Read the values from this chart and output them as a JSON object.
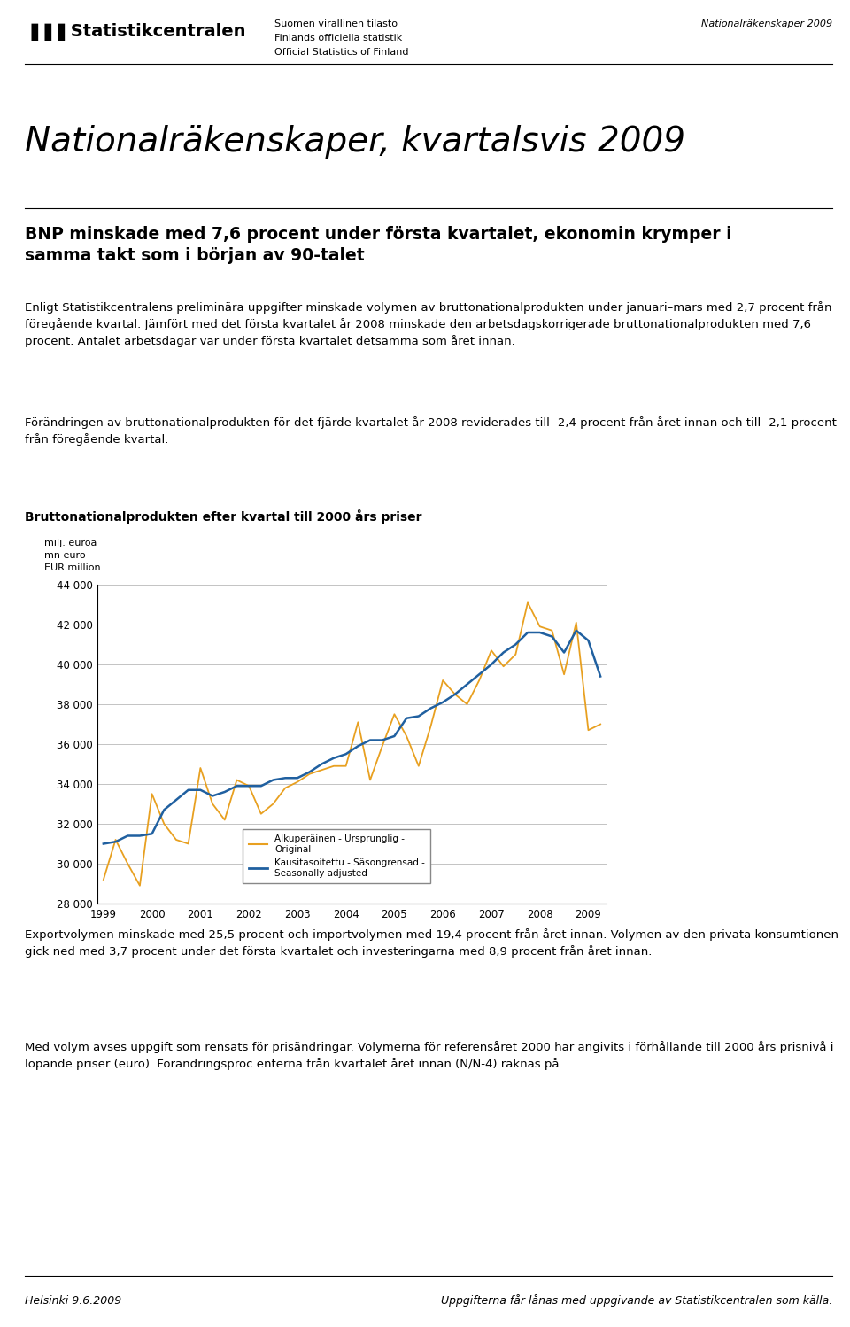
{
  "title_main": "Nationalräkenskaper, kvartalsvis 2009",
  "header_left1": "Suomen virallinen tilasto",
  "header_left2": "Finlands officiella statistik",
  "header_left3": "Official Statistics of Finland",
  "header_right": "Nationalräkenskaper 2009",
  "logo_text": "Statistikcentralen",
  "subtitle": "BNP minskade med 7,6 procent under första kvartalet, ekonomin krymper i\nsamma takt som i början av 90-talet",
  "para1": "Enligt Statistikcentralens preliminära uppgifter minskade volymen av bruttonationalprodukten under januari–mars med 2,7 procent från föregående kvartal. Jämfört med det första kvartalet år 2008 minskade den arbetsdagskorrigerade bruttonationalprodukten med 7,6 procent. Antalet arbetsdagar var under första kvartalet detsamma som året innan.",
  "para2": "Förändringen av bruttonationalprodukten för det fjärde kvartalet år 2008 reviderades till -2,4 procent från året innan och till -2,1 procent från föregående kvartal.",
  "chart_title": "Bruttonationalprodukten efter kvartal till 2000 års priser",
  "chart_ylabel1": "milj. euroa",
  "chart_ylabel2": "mn euro",
  "chart_ylabel3": "EUR million",
  "para3": "Exportvolymen minskade med 25,5 procent och importvolymen med 19,4 procent från året innan. Volymen av den privata konsumtionen gick ned med 3,7 procent under det första kvartalet och investeringarna med 8,9 procent från året innan.",
  "para4": "Med volym avses uppgift som rensats för prisändringar. Volymerna för referensåret 2000 har angivits i förhållande till 2000 års prisnivå i löpande priser (euro). Förändringsproc enterna från kvartalet året innan (N/N-4) räknas på",
  "footer_left": "Helsinki 9.6.2009",
  "footer_right": "Uppgifterna får lånas med uppgivande av Statistikcentralen som källa.",
  "legend_line1": "Alkuperäinen - Ursprunglig -\nOriginal",
  "legend_line2": "Kausitasoitettu - Säsongrensad -\nSeasonally adjusted",
  "ylim": [
    28000,
    44000
  ],
  "yticks": [
    28000,
    30000,
    32000,
    34000,
    36000,
    38000,
    40000,
    42000,
    44000
  ],
  "ytick_labels": [
    "28 000",
    "30 000",
    "32 000",
    "34 000",
    "36 000",
    "38 000",
    "40 000",
    "42 000",
    "44 000"
  ],
  "xtick_labels": [
    "1999",
    "2000",
    "2001",
    "2002",
    "2003",
    "2004",
    "2005",
    "2006",
    "2007",
    "2008",
    "2009"
  ],
  "color_original": "#E8A020",
  "color_seasonal": "#2060A0",
  "original_data": [
    29200,
    31200,
    30000,
    28900,
    33500,
    32000,
    31200,
    31000,
    34800,
    33000,
    32200,
    34200,
    33900,
    32500,
    33000,
    33800,
    34100,
    34500,
    34700,
    34900,
    34900,
    37100,
    34200,
    35900,
    37500,
    36400,
    34900,
    36900,
    39200,
    38500,
    38000,
    39200,
    40700,
    39900,
    40500,
    43100,
    41900,
    41700,
    39500,
    42100,
    36700,
    37000
  ],
  "seasonal_data": [
    31000,
    31100,
    31400,
    31400,
    31500,
    32700,
    33200,
    33700,
    33700,
    33400,
    33600,
    33900,
    33900,
    33900,
    34200,
    34300,
    34300,
    34600,
    35000,
    35300,
    35500,
    35900,
    36200,
    36200,
    36400,
    37300,
    37400,
    37800,
    38100,
    38500,
    39000,
    39500,
    40000,
    40600,
    41000,
    41600,
    41600,
    41400,
    40600,
    41700,
    41200,
    39400
  ],
  "fig_width": 9.6,
  "fig_height": 14.98,
  "dpi": 100
}
